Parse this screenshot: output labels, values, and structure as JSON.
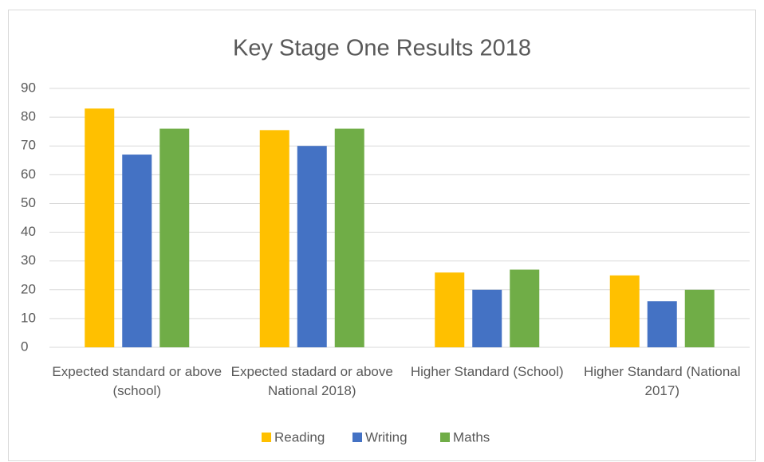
{
  "chart_data": {
    "type": "bar",
    "title": "Key Stage One Results 2018",
    "categories": [
      "Expected standard or above (school)",
      "Expected stadard or above National 2018)",
      "Higher Standard (School)",
      "Higher Standard (National 2017)"
    ],
    "series": [
      {
        "name": "Reading",
        "color": "#FFC000",
        "values": [
          83,
          75.5,
          26,
          25
        ]
      },
      {
        "name": "Writing",
        "color": "#4472C4",
        "values": [
          67,
          70,
          20,
          16
        ]
      },
      {
        "name": "Maths",
        "color": "#70AD47",
        "values": [
          76,
          76,
          27,
          20
        ]
      }
    ],
    "ylim": [
      0,
      90
    ],
    "yticks": [
      0,
      10,
      20,
      30,
      40,
      50,
      60,
      70,
      80,
      90
    ],
    "grid": true,
    "legend": "bottom"
  }
}
